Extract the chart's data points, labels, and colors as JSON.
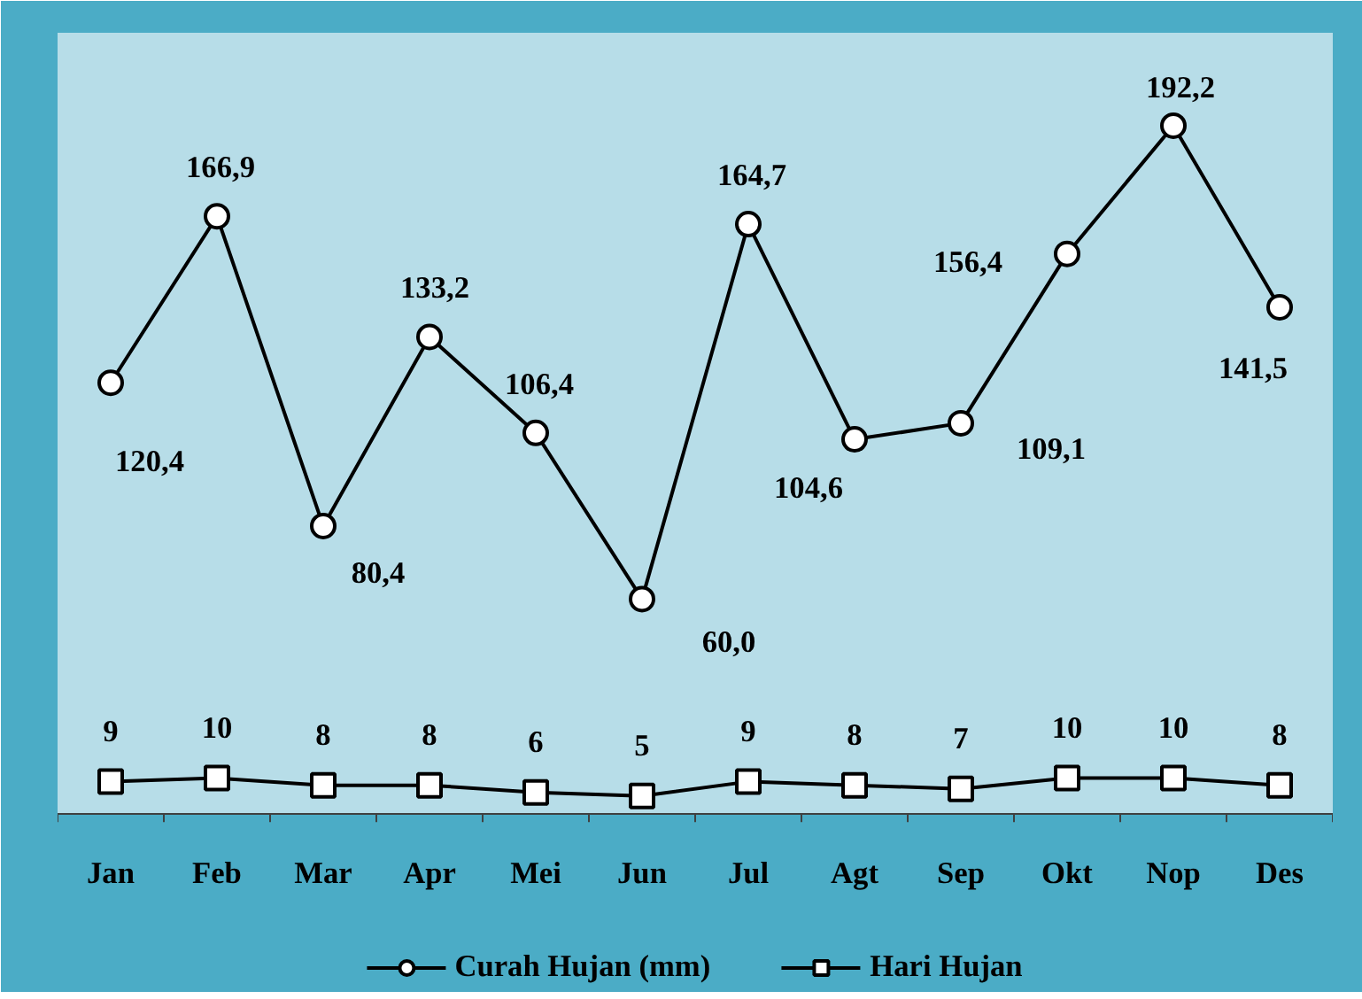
{
  "chart_data": {
    "type": "line",
    "categories": [
      "Jan",
      "Feb",
      "Mar",
      "Apr",
      "Mei",
      "Jun",
      "Jul",
      "Agt",
      "Sep",
      "Okt",
      "Nop",
      "Des"
    ],
    "series": [
      {
        "name": "Curah Hujan (mm)",
        "color": "#000000",
        "marker": "circle",
        "values": [
          120.4,
          166.9,
          80.4,
          133.2,
          106.4,
          60.0,
          164.7,
          104.6,
          109.1,
          156.4,
          192.2,
          141.5
        ],
        "value_labels": [
          "120,4",
          "166,9",
          "80,4",
          "133,2",
          "106,4",
          "60,0",
          "164,7",
          "104,6",
          "109,1",
          "156,4",
          "192,2",
          "141,5"
        ]
      },
      {
        "name": "Hari Hujan",
        "color": "#000000",
        "marker": "square",
        "values": [
          9,
          10,
          8,
          8,
          6,
          5,
          9,
          8,
          7,
          10,
          10,
          8
        ],
        "value_labels": [
          "9",
          "10",
          "8",
          "8",
          "6",
          "5",
          "9",
          "8",
          "7",
          "10",
          "10",
          "8"
        ]
      }
    ],
    "legend": "bottom",
    "line_style": "solid"
  }
}
